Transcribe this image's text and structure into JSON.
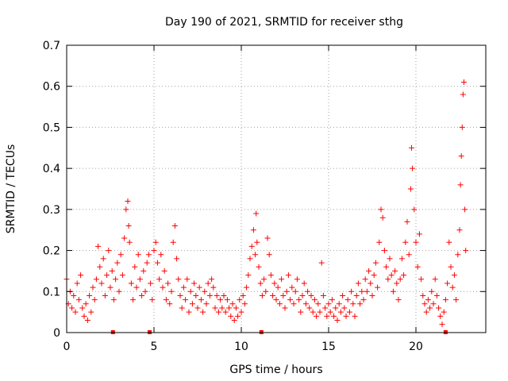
{
  "chart_data": {
    "type": "scatter",
    "title": "Day 190 of 2021, SRMTID for receiver sthg",
    "xlabel": "GPS time / hours",
    "ylabel": "SRMTID / TECUs",
    "xlim": [
      0,
      24
    ],
    "ylim": [
      0,
      0.7
    ],
    "xticks": [
      0,
      5,
      10,
      15,
      20
    ],
    "yticks": [
      0,
      0.1,
      0.2,
      0.3,
      0.4,
      0.5,
      0.6,
      0.7
    ],
    "ytick_labels": [
      "0",
      "0.1",
      "0.2",
      "0.3",
      "0.4",
      "0.5",
      "0.6",
      "0.7"
    ],
    "grid": true,
    "marker": "+",
    "series_color": "#ff0000",
    "series": [
      {
        "name": "SRMTID",
        "points": [
          [
            0.0,
            0.13
          ],
          [
            0.1,
            0.07
          ],
          [
            0.2,
            0.1
          ],
          [
            0.3,
            0.06
          ],
          [
            0.4,
            0.09
          ],
          [
            0.5,
            0.05
          ],
          [
            0.6,
            0.12
          ],
          [
            0.7,
            0.08
          ],
          [
            0.8,
            0.14
          ],
          [
            0.9,
            0.06
          ],
          [
            1.0,
            0.04
          ],
          [
            1.1,
            0.07
          ],
          [
            1.2,
            0.03
          ],
          [
            1.3,
            0.09
          ],
          [
            1.4,
            0.05
          ],
          [
            1.5,
            0.11
          ],
          [
            1.6,
            0.08
          ],
          [
            1.7,
            0.13
          ],
          [
            1.8,
            0.21
          ],
          [
            1.9,
            0.16
          ],
          [
            2.0,
            0.12
          ],
          [
            2.1,
            0.18
          ],
          [
            2.2,
            0.09
          ],
          [
            2.3,
            0.14
          ],
          [
            2.4,
            0.2
          ],
          [
            2.5,
            0.11
          ],
          [
            2.6,
            0.15
          ],
          [
            2.7,
            0.08
          ],
          [
            2.8,
            0.13
          ],
          [
            2.9,
            0.17
          ],
          [
            3.0,
            0.1
          ],
          [
            3.1,
            0.19
          ],
          [
            3.2,
            0.14
          ],
          [
            3.3,
            0.23
          ],
          [
            3.4,
            0.3
          ],
          [
            3.5,
            0.32
          ],
          [
            3.55,
            0.26
          ],
          [
            3.6,
            0.22
          ],
          [
            3.7,
            0.12
          ],
          [
            3.8,
            0.08
          ],
          [
            3.9,
            0.16
          ],
          [
            4.0,
            0.11
          ],
          [
            4.1,
            0.19
          ],
          [
            4.2,
            0.13
          ],
          [
            4.3,
            0.09
          ],
          [
            4.4,
            0.15
          ],
          [
            4.5,
            0.1
          ],
          [
            4.6,
            0.17
          ],
          [
            4.7,
            0.19
          ],
          [
            4.8,
            0.12
          ],
          [
            4.9,
            0.08
          ],
          [
            5.0,
            0.2
          ],
          [
            5.1,
            0.22
          ],
          [
            5.2,
            0.17
          ],
          [
            5.3,
            0.13
          ],
          [
            5.4,
            0.19
          ],
          [
            5.5,
            0.11
          ],
          [
            5.6,
            0.15
          ],
          [
            5.7,
            0.08
          ],
          [
            5.8,
            0.12
          ],
          [
            5.9,
            0.07
          ],
          [
            6.0,
            0.1
          ],
          [
            6.1,
            0.22
          ],
          [
            6.2,
            0.26
          ],
          [
            6.3,
            0.18
          ],
          [
            6.4,
            0.13
          ],
          [
            6.5,
            0.09
          ],
          [
            6.6,
            0.06
          ],
          [
            6.7,
            0.11
          ],
          [
            6.8,
            0.08
          ],
          [
            6.9,
            0.13
          ],
          [
            7.0,
            0.05
          ],
          [
            7.1,
            0.1
          ],
          [
            7.2,
            0.07
          ],
          [
            7.3,
            0.12
          ],
          [
            7.4,
            0.09
          ],
          [
            7.5,
            0.06
          ],
          [
            7.6,
            0.11
          ],
          [
            7.7,
            0.08
          ],
          [
            7.8,
            0.05
          ],
          [
            7.9,
            0.1
          ],
          [
            8.0,
            0.07
          ],
          [
            8.1,
            0.12
          ],
          [
            8.2,
            0.09
          ],
          [
            8.3,
            0.13
          ],
          [
            8.4,
            0.11
          ],
          [
            8.5,
            0.06
          ],
          [
            8.6,
            0.09
          ],
          [
            8.7,
            0.05
          ],
          [
            8.8,
            0.08
          ],
          [
            8.9,
            0.06
          ],
          [
            9.0,
            0.09
          ],
          [
            9.1,
            0.05
          ],
          [
            9.2,
            0.08
          ],
          [
            9.3,
            0.06
          ],
          [
            9.4,
            0.04
          ],
          [
            9.5,
            0.07
          ],
          [
            9.6,
            0.03
          ],
          [
            9.7,
            0.06
          ],
          [
            9.8,
            0.04
          ],
          [
            9.9,
            0.08
          ],
          [
            10.0,
            0.05
          ],
          [
            10.1,
            0.09
          ],
          [
            10.2,
            0.07
          ],
          [
            10.3,
            0.11
          ],
          [
            10.4,
            0.14
          ],
          [
            10.5,
            0.18
          ],
          [
            10.6,
            0.21
          ],
          [
            10.7,
            0.25
          ],
          [
            10.8,
            0.19
          ],
          [
            10.85,
            0.29
          ],
          [
            10.9,
            0.22
          ],
          [
            11.0,
            0.16
          ],
          [
            11.1,
            0.12
          ],
          [
            11.2,
            0.09
          ],
          [
            11.3,
            0.13
          ],
          [
            11.4,
            0.1
          ],
          [
            11.5,
            0.23
          ],
          [
            11.6,
            0.19
          ],
          [
            11.7,
            0.14
          ],
          [
            11.8,
            0.09
          ],
          [
            11.9,
            0.12
          ],
          [
            12.0,
            0.08
          ],
          [
            12.1,
            0.11
          ],
          [
            12.2,
            0.07
          ],
          [
            12.3,
            0.13
          ],
          [
            12.4,
            0.09
          ],
          [
            12.5,
            0.06
          ],
          [
            12.6,
            0.1
          ],
          [
            12.7,
            0.14
          ],
          [
            12.8,
            0.08
          ],
          [
            12.9,
            0.11
          ],
          [
            13.0,
            0.07
          ],
          [
            13.1,
            0.1
          ],
          [
            13.2,
            0.13
          ],
          [
            13.3,
            0.08
          ],
          [
            13.4,
            0.05
          ],
          [
            13.5,
            0.09
          ],
          [
            13.6,
            0.12
          ],
          [
            13.7,
            0.07
          ],
          [
            13.8,
            0.1
          ],
          [
            13.9,
            0.06
          ],
          [
            14.0,
            0.09
          ],
          [
            14.1,
            0.05
          ],
          [
            14.2,
            0.08
          ],
          [
            14.3,
            0.04
          ],
          [
            14.4,
            0.07
          ],
          [
            14.5,
            0.05
          ],
          [
            14.6,
            0.17
          ],
          [
            14.7,
            0.09
          ],
          [
            14.8,
            0.06
          ],
          [
            14.9,
            0.04
          ],
          [
            15.0,
            0.07
          ],
          [
            15.1,
            0.05
          ],
          [
            15.2,
            0.08
          ],
          [
            15.3,
            0.04
          ],
          [
            15.4,
            0.06
          ],
          [
            15.5,
            0.03
          ],
          [
            15.6,
            0.07
          ],
          [
            15.7,
            0.05
          ],
          [
            15.8,
            0.09
          ],
          [
            15.9,
            0.06
          ],
          [
            16.0,
            0.04
          ],
          [
            16.1,
            0.08
          ],
          [
            16.2,
            0.05
          ],
          [
            16.3,
            0.1
          ],
          [
            16.4,
            0.07
          ],
          [
            16.5,
            0.04
          ],
          [
            16.6,
            0.09
          ],
          [
            16.7,
            0.12
          ],
          [
            16.8,
            0.07
          ],
          [
            16.9,
            0.1
          ],
          [
            17.0,
            0.08
          ],
          [
            17.1,
            0.13
          ],
          [
            17.2,
            0.1
          ],
          [
            17.3,
            0.15
          ],
          [
            17.4,
            0.12
          ],
          [
            17.5,
            0.09
          ],
          [
            17.6,
            0.14
          ],
          [
            17.7,
            0.17
          ],
          [
            17.8,
            0.11
          ],
          [
            17.9,
            0.22
          ],
          [
            18.0,
            0.3
          ],
          [
            18.1,
            0.28
          ],
          [
            18.2,
            0.2
          ],
          [
            18.3,
            0.16
          ],
          [
            18.4,
            0.13
          ],
          [
            18.5,
            0.18
          ],
          [
            18.6,
            0.14
          ],
          [
            18.7,
            0.1
          ],
          [
            18.8,
            0.15
          ],
          [
            18.9,
            0.12
          ],
          [
            19.0,
            0.08
          ],
          [
            19.1,
            0.13
          ],
          [
            19.2,
            0.18
          ],
          [
            19.3,
            0.14
          ],
          [
            19.4,
            0.22
          ],
          [
            19.5,
            0.27
          ],
          [
            19.6,
            0.19
          ],
          [
            19.7,
            0.35
          ],
          [
            19.75,
            0.45
          ],
          [
            19.8,
            0.4
          ],
          [
            19.9,
            0.3
          ],
          [
            20.0,
            0.22
          ],
          [
            20.1,
            0.16
          ],
          [
            20.2,
            0.24
          ],
          [
            20.3,
            0.13
          ],
          [
            20.4,
            0.09
          ],
          [
            20.5,
            0.07
          ],
          [
            20.6,
            0.05
          ],
          [
            20.7,
            0.08
          ],
          [
            20.8,
            0.06
          ],
          [
            20.9,
            0.1
          ],
          [
            21.0,
            0.07
          ],
          [
            21.1,
            0.13
          ],
          [
            21.2,
            0.09
          ],
          [
            21.3,
            0.06
          ],
          [
            21.4,
            0.04
          ],
          [
            21.5,
            0.02
          ],
          [
            21.6,
            0.05
          ],
          [
            21.7,
            0.08
          ],
          [
            21.8,
            0.12
          ],
          [
            21.9,
            0.22
          ],
          [
            22.0,
            0.16
          ],
          [
            22.1,
            0.11
          ],
          [
            22.2,
            0.14
          ],
          [
            22.3,
            0.08
          ],
          [
            22.4,
            0.19
          ],
          [
            22.5,
            0.25
          ],
          [
            22.55,
            0.36
          ],
          [
            22.6,
            0.43
          ],
          [
            22.65,
            0.5
          ],
          [
            22.7,
            0.58
          ],
          [
            22.75,
            0.61
          ],
          [
            22.8,
            0.3
          ],
          [
            22.85,
            0.2
          ]
        ]
      }
    ],
    "x_markers": [
      2.65,
      4.75,
      11.15,
      21.7
    ]
  }
}
